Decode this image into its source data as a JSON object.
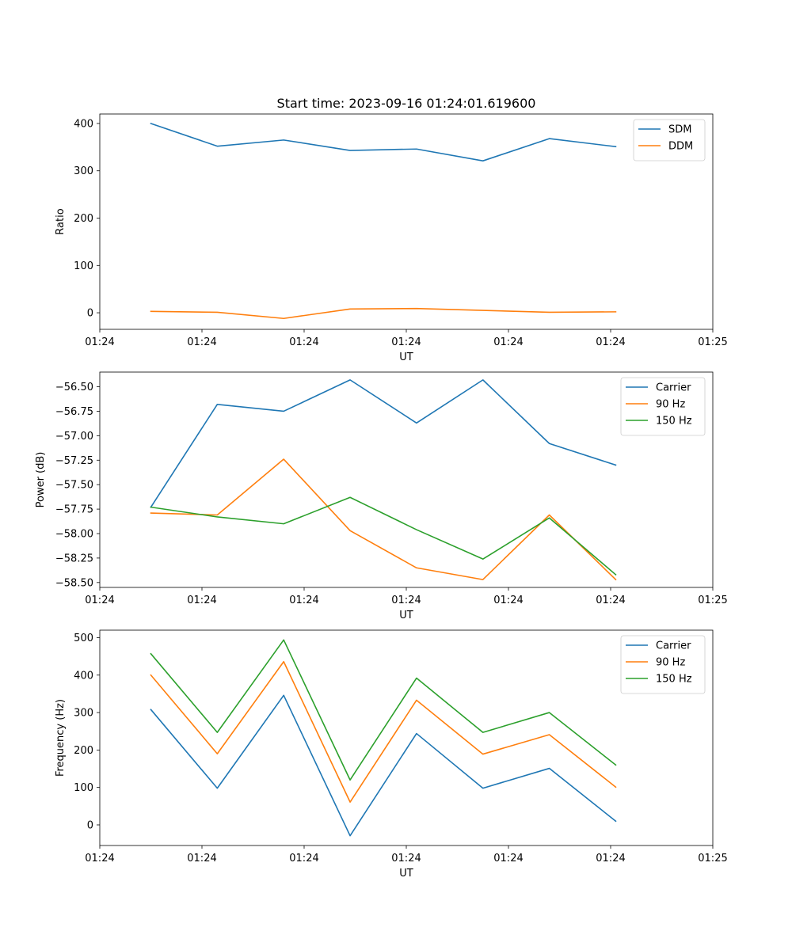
{
  "figure_title": "Start time: 2023-09-16 01:24:01.619600",
  "chart_data": [
    {
      "type": "line",
      "title": "Start time: 2023-09-16 01:24:01.619600",
      "xlabel": "UT",
      "ylabel": "Ratio",
      "x": [
        0.5,
        1.15,
        1.8,
        2.45,
        3.1,
        3.75,
        4.4,
        5.05
      ],
      "xlim": [
        0,
        6
      ],
      "xticks": [
        0,
        1,
        2,
        3,
        4,
        5,
        6
      ],
      "xtick_labels": [
        "01:24",
        "01:24",
        "01:24",
        "01:24",
        "01:24",
        "01:24",
        "01:25"
      ],
      "ylim": [
        -35,
        420
      ],
      "yticks": [
        0,
        100,
        200,
        300,
        400
      ],
      "ytick_labels": [
        "0",
        "100",
        "200",
        "300",
        "400"
      ],
      "legend_position": "top-right",
      "series": [
        {
          "name": "SDM",
          "color": "#1f77b4",
          "values": [
            400,
            352,
            365,
            343,
            346,
            321,
            368,
            351
          ]
        },
        {
          "name": "DDM",
          "color": "#ff7f0e",
          "values": [
            3,
            1,
            -12,
            8,
            9,
            5,
            1,
            2
          ]
        }
      ]
    },
    {
      "type": "line",
      "title": "",
      "xlabel": "UT",
      "ylabel": "Power (dB)",
      "x": [
        0.5,
        1.15,
        1.8,
        2.45,
        3.1,
        3.75,
        4.4,
        5.05
      ],
      "xlim": [
        0,
        6
      ],
      "xticks": [
        0,
        1,
        2,
        3,
        4,
        5,
        6
      ],
      "xtick_labels": [
        "01:24",
        "01:24",
        "01:24",
        "01:24",
        "01:24",
        "01:24",
        "01:25"
      ],
      "ylim": [
        -58.55,
        -56.35
      ],
      "yticks": [
        -58.5,
        -58.25,
        -58.0,
        -57.75,
        -57.5,
        -57.25,
        -57.0,
        -56.75,
        -56.5
      ],
      "ytick_labels": [
        "−58.50",
        "−58.25",
        "−58.00",
        "−57.75",
        "−57.50",
        "−57.25",
        "−57.00",
        "−56.75",
        "−56.50"
      ],
      "legend_position": "top-right",
      "series": [
        {
          "name": "Carrier",
          "color": "#1f77b4",
          "values": [
            -57.73,
            -56.68,
            -56.75,
            -56.43,
            -56.87,
            -56.43,
            -57.08,
            -57.3
          ]
        },
        {
          "name": "90 Hz",
          "color": "#ff7f0e",
          "values": [
            -57.79,
            -57.81,
            -57.24,
            -57.97,
            -58.35,
            -58.47,
            -57.81,
            -58.47
          ]
        },
        {
          "name": "150 Hz",
          "color": "#2ca02c",
          "values": [
            -57.73,
            -57.83,
            -57.9,
            -57.63,
            -57.96,
            -58.26,
            -57.84,
            -58.42
          ]
        }
      ]
    },
    {
      "type": "line",
      "title": "",
      "xlabel": "UT",
      "ylabel": "Frequency (Hz)",
      "x": [
        0.5,
        1.15,
        1.8,
        2.45,
        3.1,
        3.75,
        4.4,
        5.05
      ],
      "xlim": [
        0,
        6
      ],
      "xticks": [
        0,
        1,
        2,
        3,
        4,
        5,
        6
      ],
      "xtick_labels": [
        "01:24",
        "01:24",
        "01:24",
        "01:24",
        "01:24",
        "01:24",
        "01:25"
      ],
      "ylim": [
        -55,
        520
      ],
      "yticks": [
        0,
        100,
        200,
        300,
        400,
        500
      ],
      "ytick_labels": [
        "0",
        "100",
        "200",
        "300",
        "400",
        "500"
      ],
      "legend_position": "top-right",
      "series": [
        {
          "name": "Carrier",
          "color": "#1f77b4",
          "values": [
            308,
            98,
            346,
            -29,
            244,
            98,
            151,
            10
          ]
        },
        {
          "name": "90 Hz",
          "color": "#ff7f0e",
          "values": [
            400,
            190,
            436,
            61,
            333,
            189,
            241,
            101
          ]
        },
        {
          "name": "150 Hz",
          "color": "#2ca02c",
          "values": [
            457,
            247,
            494,
            120,
            392,
            247,
            300,
            160
          ]
        }
      ]
    }
  ]
}
